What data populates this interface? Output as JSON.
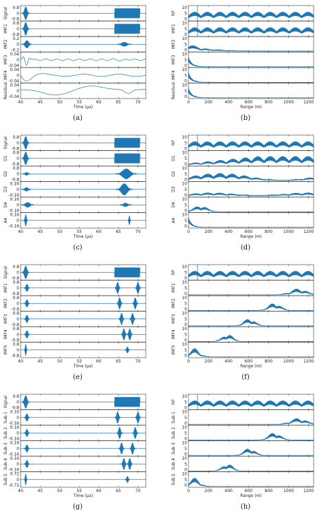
{
  "colors": {
    "signal": "#1f77b4",
    "axis": "#333333"
  },
  "panels": [
    {
      "caption": "(a)",
      "xlabel": "Time (µs)",
      "xticks": [
        "40",
        "45",
        "50",
        "55",
        "60",
        "65",
        "70"
      ],
      "rows": [
        {
          "label": "Signal",
          "yticks": [
            "0.8",
            "0",
            "-0.8"
          ],
          "kind": "time-mode",
          "spec": "full"
        },
        {
          "label": "IMF1",
          "yticks": [
            "0.8",
            "0",
            "-0.8"
          ],
          "kind": "time-mode",
          "spec": "full"
        },
        {
          "label": "IMF2",
          "yticks": [
            "0.2",
            "0",
            "-0.2"
          ],
          "kind": "time-mode",
          "spec": "imf2"
        },
        {
          "label": "IMF3",
          "yticks": [
            "0.04",
            "0",
            "-0.04"
          ],
          "kind": "time-mode",
          "spec": "slow1"
        },
        {
          "label": "IMF4",
          "yticks": [
            "0.04",
            "0",
            "-0.04"
          ],
          "kind": "time-mode",
          "spec": "slow2"
        },
        {
          "label": "Residual",
          "yticks": [
            "0.04",
            "0",
            "-0.04"
          ],
          "kind": "time-mode",
          "spec": "resid"
        }
      ]
    },
    {
      "caption": "(b)",
      "xlabel": "Range (m)",
      "xticks": [
        "0",
        "200",
        "400",
        "600",
        "800",
        "1000",
        "1200"
      ],
      "rows": [
        {
          "label": "RP",
          "yticks": [
            "10",
            "5",
            "0"
          ],
          "kind": "range",
          "spec": "rp"
        },
        {
          "label": "IMF1",
          "yticks": [
            "10",
            "5",
            "0"
          ],
          "kind": "range",
          "spec": "rp"
        },
        {
          "label": "IMF2",
          "yticks": [
            "10",
            "5",
            "0"
          ],
          "kind": "range",
          "spec": "decay"
        },
        {
          "label": "IMF3",
          "yticks": [
            "10",
            "5",
            "0"
          ],
          "kind": "range",
          "spec": "near"
        },
        {
          "label": "IMF4",
          "yticks": [
            "10",
            "5",
            "0"
          ],
          "kind": "range",
          "spec": "near"
        },
        {
          "label": "Residual",
          "yticks": [
            "10",
            "5",
            "0"
          ],
          "kind": "range",
          "spec": "near"
        }
      ]
    },
    {
      "caption": "(c)",
      "xlabel": "Time (µs)",
      "xticks": [
        "40",
        "45",
        "50",
        "55",
        "60",
        "65",
        "70"
      ],
      "rows": [
        {
          "label": "Signal",
          "yticks": [
            "0.8",
            "0",
            "-0.8"
          ],
          "kind": "time-mode",
          "spec": "full"
        },
        {
          "label": "D1",
          "yticks": [
            "0.8",
            "0",
            "-0.8"
          ],
          "kind": "time-mode",
          "spec": "full"
        },
        {
          "label": "D2",
          "yticks": [
            "0.8",
            "0",
            "-0.8"
          ],
          "kind": "time-mode",
          "spec": "d2"
        },
        {
          "label": "D3",
          "yticks": [
            "0.16",
            "0",
            "-0.16"
          ],
          "kind": "time-mode",
          "spec": "d3"
        },
        {
          "label": "D4",
          "yticks": [
            "0.16",
            "0",
            "-0.16"
          ],
          "kind": "time-mode",
          "spec": "d4"
        },
        {
          "label": "A4",
          "yticks": [
            "0.16",
            "0",
            "-0.16"
          ],
          "kind": "time-mode",
          "spec": "a4"
        }
      ]
    },
    {
      "caption": "(d)",
      "xlabel": "Range (m)",
      "xticks": [
        "0",
        "200",
        "400",
        "600",
        "800",
        "1000",
        "1200"
      ],
      "rows": [
        {
          "label": "RP",
          "yticks": [
            "10",
            "5",
            "0"
          ],
          "kind": "range",
          "spec": "rp"
        },
        {
          "label": "D1",
          "yticks": [
            "10",
            "5",
            "0"
          ],
          "kind": "range",
          "spec": "rise"
        },
        {
          "label": "D2",
          "yticks": [
            "10",
            "5",
            "0"
          ],
          "kind": "range",
          "spec": "mid"
        },
        {
          "label": "D3",
          "yticks": [
            "10",
            "5",
            "0"
          ],
          "kind": "range",
          "spec": "lowmid"
        },
        {
          "label": "D4",
          "yticks": [
            "10",
            "5",
            "0"
          ],
          "kind": "range",
          "spec": "near2"
        },
        {
          "label": "A4",
          "yticks": [
            "10",
            "5",
            "0"
          ],
          "kind": "range",
          "spec": "near"
        }
      ]
    },
    {
      "caption": "(e)",
      "xlabel": "Time (µs)",
      "xticks": [
        "40",
        "45",
        "50",
        "55",
        "60",
        "65",
        "70"
      ],
      "rows": [
        {
          "label": "Signal",
          "yticks": [
            "0.8",
            "0",
            "-0.8"
          ],
          "kind": "time-mode",
          "spec": "full"
        },
        {
          "label": "IMF1",
          "yticks": [
            "0.8",
            "0",
            "-0.8"
          ],
          "kind": "time-mode",
          "spec": "pair70"
        },
        {
          "label": "IMF2",
          "yticks": [
            "0.8",
            "0",
            "-0.8"
          ],
          "kind": "time-mode",
          "spec": "pair69"
        },
        {
          "label": "IMF3",
          "yticks": [
            "0.8",
            "0",
            "-0.8"
          ],
          "kind": "time-mode",
          "spec": "pair68"
        },
        {
          "label": "IMF4",
          "yticks": [
            "0.8",
            "0",
            "-0.8"
          ],
          "kind": "time-mode",
          "spec": "pair67"
        },
        {
          "label": "IMF5",
          "yticks": [
            "0.8",
            "0",
            "-0.8"
          ],
          "kind": "time-mode",
          "spec": "tail"
        }
      ]
    },
    {
      "caption": "(f)",
      "xlabel": "Range (m)",
      "xticks": [
        "0",
        "200",
        "400",
        "600",
        "800",
        "1000",
        "1200"
      ],
      "rows": [
        {
          "label": "RP",
          "yticks": [
            "10",
            "5",
            "0"
          ],
          "kind": "range",
          "spec": "rp"
        },
        {
          "label": "IMF1",
          "yticks": [
            "10",
            "5",
            "0"
          ],
          "kind": "range",
          "spec": "b1100"
        },
        {
          "label": "IMF2",
          "yticks": [
            "10",
            "5",
            "0"
          ],
          "kind": "range",
          "spec": "b850"
        },
        {
          "label": "IMF3",
          "yticks": [
            "10",
            "5",
            "0"
          ],
          "kind": "range",
          "spec": "b600"
        },
        {
          "label": "IMF4",
          "yticks": [
            "10",
            "5",
            "0"
          ],
          "kind": "range",
          "spec": "b380"
        },
        {
          "label": "IMF5",
          "yticks": [
            "10",
            "5",
            "0"
          ],
          "kind": "range",
          "spec": "b80"
        }
      ]
    },
    {
      "caption": "(g)",
      "xlabel": "Time (µs)",
      "xticks": [
        "40",
        "45",
        "50",
        "55",
        "60",
        "65",
        "70"
      ],
      "rows": [
        {
          "label": "Signal",
          "yticks": [
            "0.8",
            "0",
            "-0.8"
          ],
          "kind": "time-mode",
          "spec": "full"
        },
        {
          "label": "Sub 1",
          "yticks": [
            "0.16",
            "0",
            "-0.16"
          ],
          "kind": "time-mode",
          "spec": "pair70"
        },
        {
          "label": "Sub 2",
          "yticks": [
            "0.16",
            "0",
            "-0.16"
          ],
          "kind": "time-mode",
          "spec": "pair69"
        },
        {
          "label": "Sub 3",
          "yticks": [
            "0.16",
            "0",
            "-0.16"
          ],
          "kind": "time-mode",
          "spec": "pair68"
        },
        {
          "label": "Sub 4",
          "yticks": [
            "0.16",
            "0",
            "-0.16"
          ],
          "kind": "time-mode",
          "spec": "pair67"
        },
        {
          "label": "Sub 5",
          "yticks": [
            "0.72",
            "0",
            "-0.72"
          ],
          "kind": "time-mode",
          "spec": "tail"
        }
      ]
    },
    {
      "caption": "(h)",
      "xlabel": "Range (m)",
      "xticks": [
        "0",
        "200",
        "400",
        "600",
        "800",
        "1000",
        "1200"
      ],
      "rows": [
        {
          "label": "RP",
          "yticks": [
            "10",
            "5",
            "0"
          ],
          "kind": "range",
          "spec": "rp"
        },
        {
          "label": "Sub 1",
          "yticks": [
            "10",
            "5",
            "0"
          ],
          "kind": "range",
          "spec": "b1100"
        },
        {
          "label": "Sub 2",
          "yticks": [
            "10",
            "5",
            "0"
          ],
          "kind": "range",
          "spec": "b850"
        },
        {
          "label": "Sub 3",
          "yticks": [
            "10",
            "5",
            "0"
          ],
          "kind": "range",
          "spec": "b600"
        },
        {
          "label": "Sub 4",
          "yticks": [
            "10",
            "5",
            "0"
          ],
          "kind": "range",
          "spec": "b380"
        },
        {
          "label": "Sub 5",
          "yticks": [
            "10",
            "5",
            "0"
          ],
          "kind": "range",
          "spec": "b80"
        }
      ]
    }
  ],
  "chart_data": [
    {
      "type": "line",
      "panel": "(a)",
      "xlabel": "Time (µs)",
      "xlim": [
        40,
        72
      ],
      "series": [
        "Signal",
        "IMF1",
        "IMF2",
        "IMF3",
        "IMF4",
        "Residual"
      ]
    },
    {
      "type": "line",
      "panel": "(b)",
      "xlabel": "Range (m)",
      "xlim": [
        0,
        1250
      ],
      "ylim": [
        0,
        10
      ],
      "series": [
        "RP",
        "IMF1",
        "IMF2",
        "IMF3",
        "IMF4",
        "Residual"
      ]
    },
    {
      "type": "line",
      "panel": "(c)",
      "xlabel": "Time (µs)",
      "xlim": [
        40,
        72
      ],
      "series": [
        "Signal",
        "D1",
        "D2",
        "D3",
        "D4",
        "A4"
      ]
    },
    {
      "type": "line",
      "panel": "(d)",
      "xlabel": "Range (m)",
      "xlim": [
        0,
        1250
      ],
      "ylim": [
        0,
        10
      ],
      "series": [
        "RP",
        "D1",
        "D2",
        "D3",
        "D4",
        "A4"
      ]
    },
    {
      "type": "line",
      "panel": "(e)",
      "xlabel": "Time (µs)",
      "xlim": [
        40,
        72
      ],
      "series": [
        "Signal",
        "IMF1",
        "IMF2",
        "IMF3",
        "IMF4",
        "IMF5"
      ]
    },
    {
      "type": "line",
      "panel": "(f)",
      "xlabel": "Range (m)",
      "xlim": [
        0,
        1250
      ],
      "ylim": [
        0,
        10
      ],
      "series": [
        "RP",
        "IMF1",
        "IMF2",
        "IMF3",
        "IMF4",
        "IMF5"
      ]
    },
    {
      "type": "line",
      "panel": "(g)",
      "xlabel": "Time (µs)",
      "xlim": [
        40,
        72
      ],
      "series": [
        "Signal",
        "Sub 1",
        "Sub 2",
        "Sub 3",
        "Sub 4",
        "Sub 5"
      ]
    },
    {
      "type": "line",
      "panel": "(h)",
      "xlabel": "Range (m)",
      "xlim": [
        0,
        1250
      ],
      "ylim": [
        0,
        10
      ],
      "series": [
        "RP",
        "Sub 1",
        "Sub 2",
        "Sub 3",
        "Sub 4",
        "Sub 5"
      ]
    }
  ]
}
